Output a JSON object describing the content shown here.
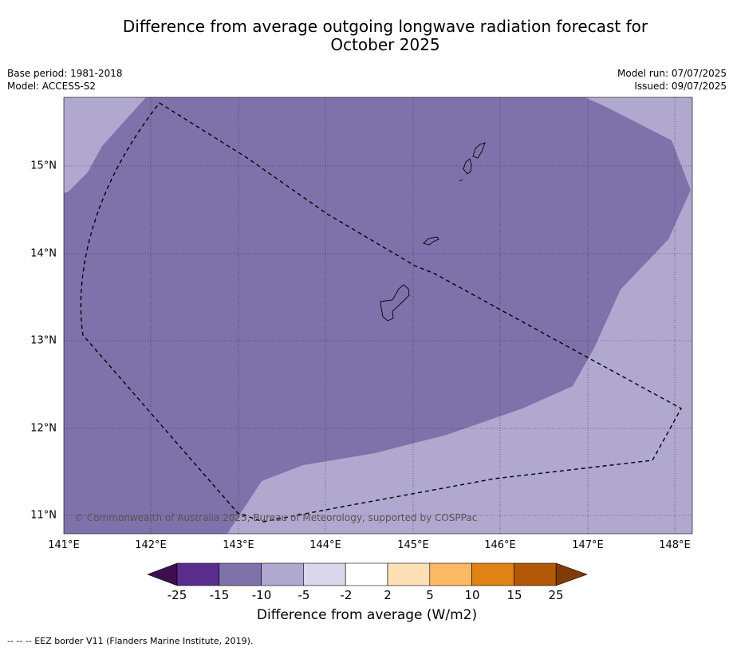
{
  "title_line1": "Difference from average outgoing longwave radiation forecast for",
  "title_line2": "October 2025",
  "base_period": "Base period: 1981-2018",
  "model": "Model: ACCESS-S2",
  "model_run": "Model run: 07/07/2025",
  "issued": "Issued: 09/07/2025",
  "lat_labels": [
    "15°N",
    "14°N",
    "13°N",
    "12°N",
    "11°N"
  ],
  "lon_labels": [
    "141°E",
    "142°E",
    "143°E",
    "144°E",
    "145°E",
    "146°E",
    "147°E",
    "148°E"
  ],
  "copyright": "© Commonwealth of Australia 2025, Bureau of Meteorology, supported by COSPPac",
  "colorbar": {
    "ticks": [
      "-25",
      "-15",
      "-10",
      "-5",
      "-2",
      "2",
      "5",
      "10",
      "15",
      "25"
    ],
    "colors": [
      "#5a2d8c",
      "#7f72ab",
      "#b0a8cf",
      "#d9d8ea",
      "#ffffff",
      "#fde0b6",
      "#fdb863",
      "#e08214",
      "#b35806"
    ],
    "under_color": "#3d0f4f",
    "over_color": "#7f3b08",
    "label": "Difference from average (W/m2)"
  },
  "map_colors": {
    "dark_band": "#7f72ab",
    "light_band": "#b0a8cf"
  },
  "footnote": "--  --  -- EEZ border V11 (Flanders Marine Institute, 2019)."
}
